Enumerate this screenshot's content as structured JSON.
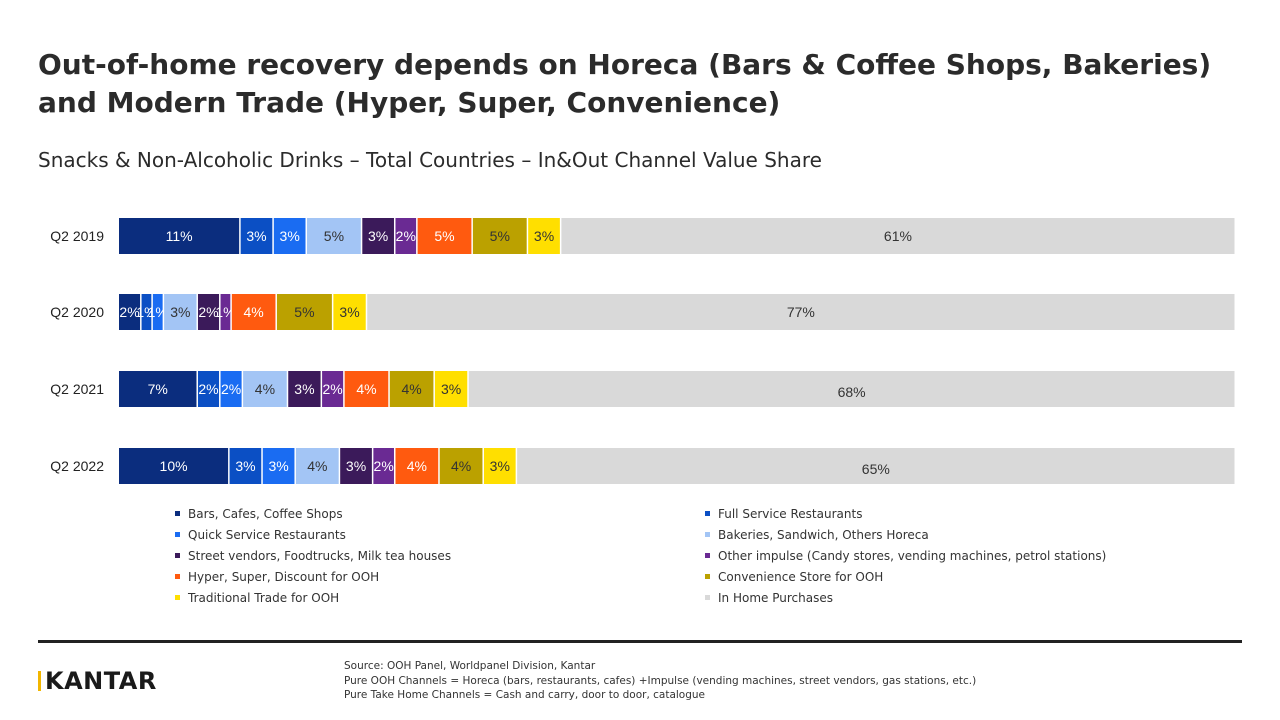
{
  "header": {
    "title": "Out-of-home recovery depends on Horeca (Bars & Coffee Shops, Bakeries) and Modern Trade (Hyper, Super, Convenience)",
    "subtitle": "Snacks & Non-Alcoholic Drinks – Total Countries – In&Out Channel Value Share"
  },
  "chart_data": {
    "type": "bar",
    "orientation": "horizontal",
    "stacked": true,
    "normalized": true,
    "categories": [
      "Q2 2019",
      "Q2 2020",
      "Q2 2021",
      "Q2 2022"
    ],
    "series": [
      {
        "name": "Bars, Cafes, Coffee Shops",
        "color": "#0b2d7e",
        "values": [
          11,
          2,
          7,
          10
        ],
        "labels": [
          "11%",
          "2%",
          "7%",
          "10%"
        ]
      },
      {
        "name": "Full Service Restaurants",
        "color": "#0b4fc4",
        "values": [
          3,
          1,
          2,
          3
        ],
        "labels": [
          "3%",
          "1%",
          "2%",
          "3%"
        ]
      },
      {
        "name": "Quick Service Restaurants",
        "color": "#1a6cf2",
        "values": [
          3,
          1,
          2,
          3
        ],
        "labels": [
          "3%",
          "1%",
          "2%",
          "3%"
        ]
      },
      {
        "name": "Bakeries, Sandwich, Others Horeca",
        "color": "#a3c5f5",
        "values": [
          5,
          3,
          4,
          4
        ],
        "labels": [
          "5%",
          "3%",
          "4%",
          "4%"
        ]
      },
      {
        "name": "Street vendors, Foodtrucks, Milk tea houses",
        "color": "#3b1a5a",
        "values": [
          3,
          2,
          3,
          3
        ],
        "labels": [
          "3%",
          "2%",
          "3%",
          "3%"
        ]
      },
      {
        "name": "Other impulse (Candy stores, vending machines, petrol stations)",
        "color": "#6a2a93",
        "values": [
          2,
          1,
          2,
          2
        ],
        "labels": [
          "2%",
          "1%",
          "2%",
          "2%"
        ]
      },
      {
        "name": "Hyper, Super, Discount for OOH",
        "color": "#ff5a0f",
        "values": [
          5,
          4,
          4,
          4
        ],
        "labels": [
          "5%",
          "4%",
          "4%",
          "4%"
        ]
      },
      {
        "name": "Convenience Store for OOH",
        "color": "#bba100",
        "values": [
          5,
          5,
          4,
          4
        ],
        "labels": [
          "5%",
          "5%",
          "4%",
          "4%"
        ]
      },
      {
        "name": "Traditional Trade for OOH",
        "color": "#ffdf00",
        "values": [
          3,
          3,
          3,
          3
        ],
        "labels": [
          "3%",
          "3%",
          "3%",
          "3%"
        ]
      },
      {
        "name": "In Home Purchases",
        "color": "#d9d9d9",
        "values": [
          61,
          77,
          68,
          65
        ],
        "labels": [
          "61%",
          "77%",
          "68%",
          "65%"
        ]
      }
    ],
    "legend_position": "bottom",
    "grid": false
  },
  "footer": {
    "logo": "KANTAR",
    "source_lines": [
      "Source: OOH Panel, Worldpanel Division, Kantar",
      "Pure OOH Channels = Horeca (bars, restaurants, cafes) +Impulse  (vending machines, street vendors, gas stations, etc.)",
      "Pure Take Home Channels = Cash and carry, door to door, catalogue"
    ]
  }
}
